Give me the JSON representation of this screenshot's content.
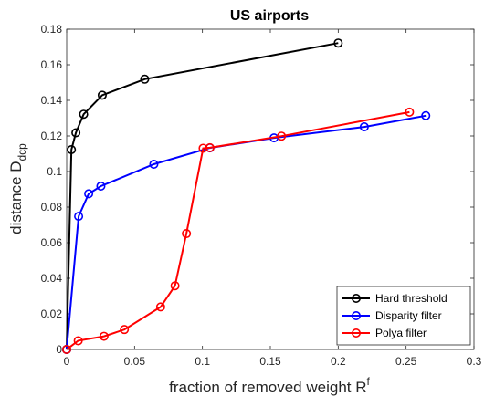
{
  "chart_data": {
    "type": "line",
    "title": "US airports",
    "xlabel": {
      "text": "fraction of removed weight R",
      "sup": "f"
    },
    "ylabel": {
      "text": "distance D",
      "sub": "dcp"
    },
    "xlim": [
      0,
      0.3
    ],
    "ylim": [
      0,
      0.18
    ],
    "xticks": [
      0,
      0.05,
      0.1,
      0.15,
      0.2,
      0.25,
      0.3
    ],
    "xtick_labels": [
      "0",
      "0.05",
      "0.1",
      "0.15",
      "0.2",
      "0.25",
      "0.3"
    ],
    "yticks": [
      0,
      0.02,
      0.04,
      0.06,
      0.08,
      0.1,
      0.12,
      0.14,
      0.16,
      0.18
    ],
    "ytick_labels": [
      "0",
      "0.02",
      "0.04",
      "0.06",
      "0.08",
      "0.1",
      "0.12",
      "0.14",
      "0.16",
      "0.18"
    ],
    "grid": false,
    "legend_position": "bottom-right",
    "series": [
      {
        "name": "Hard threshold",
        "color": "#000000",
        "marker": "circle",
        "x": [
          0,
          0.0035,
          0.0068,
          0.0125,
          0.0262,
          0.0575,
          0.2
        ],
        "y": [
          0,
          0.1123,
          0.1218,
          0.1322,
          0.1429,
          0.1519,
          0.1722
        ]
      },
      {
        "name": "Disparity filter",
        "color": "#0000ff",
        "marker": "circle",
        "x": [
          0,
          0.0088,
          0.0162,
          0.0252,
          0.0642,
          0.1055,
          0.1527,
          0.2192,
          0.2645
        ],
        "y": [
          0,
          0.0748,
          0.0875,
          0.0918,
          0.1041,
          0.1133,
          0.1189,
          0.1251,
          0.1314
        ]
      },
      {
        "name": "Polya filter",
        "color": "#ff0000",
        "marker": "circle",
        "x": [
          0,
          0.0085,
          0.0275,
          0.0425,
          0.0692,
          0.0798,
          0.0882,
          0.1005,
          0.1055,
          0.1582,
          0.2525
        ],
        "y": [
          0,
          0.0049,
          0.0074,
          0.0112,
          0.0239,
          0.0358,
          0.0651,
          0.1131,
          0.1134,
          0.1199,
          0.1334
        ]
      }
    ]
  }
}
